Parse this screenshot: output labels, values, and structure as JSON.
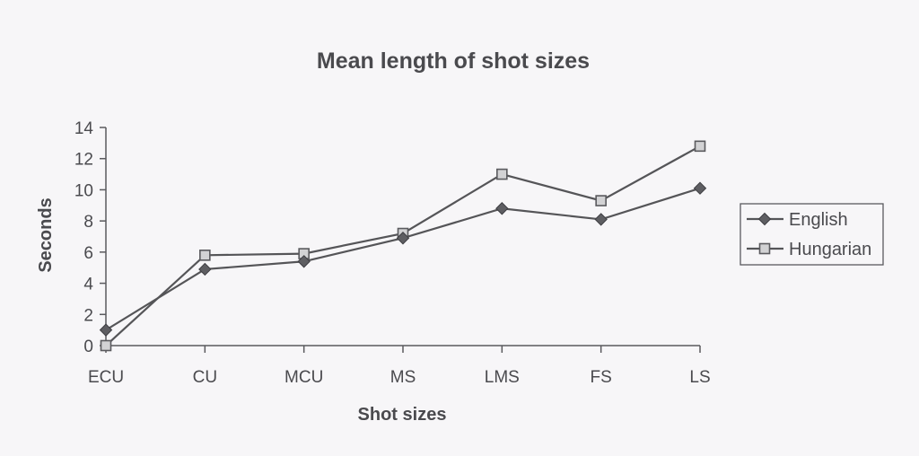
{
  "chart_data": {
    "type": "line",
    "title": "Mean length of shot sizes",
    "xlabel": "Shot sizes",
    "ylabel": "Seconds",
    "categories": [
      "ECU",
      "CU",
      "MCU",
      "MS",
      "LMS",
      "FS",
      "LS"
    ],
    "ylim": [
      0,
      14
    ],
    "yticks": [
      0,
      2,
      4,
      6,
      8,
      10,
      12,
      14
    ],
    "grid": false,
    "legend_position": "right",
    "series": [
      {
        "name": "English",
        "marker": "diamond",
        "color": "#555558",
        "values": [
          1.0,
          4.9,
          5.4,
          6.9,
          8.8,
          8.1,
          10.1
        ]
      },
      {
        "name": "Hungarian",
        "marker": "square",
        "color": "#555558",
        "values": [
          0.0,
          5.8,
          5.9,
          7.2,
          11.0,
          9.3,
          12.8
        ]
      }
    ]
  }
}
